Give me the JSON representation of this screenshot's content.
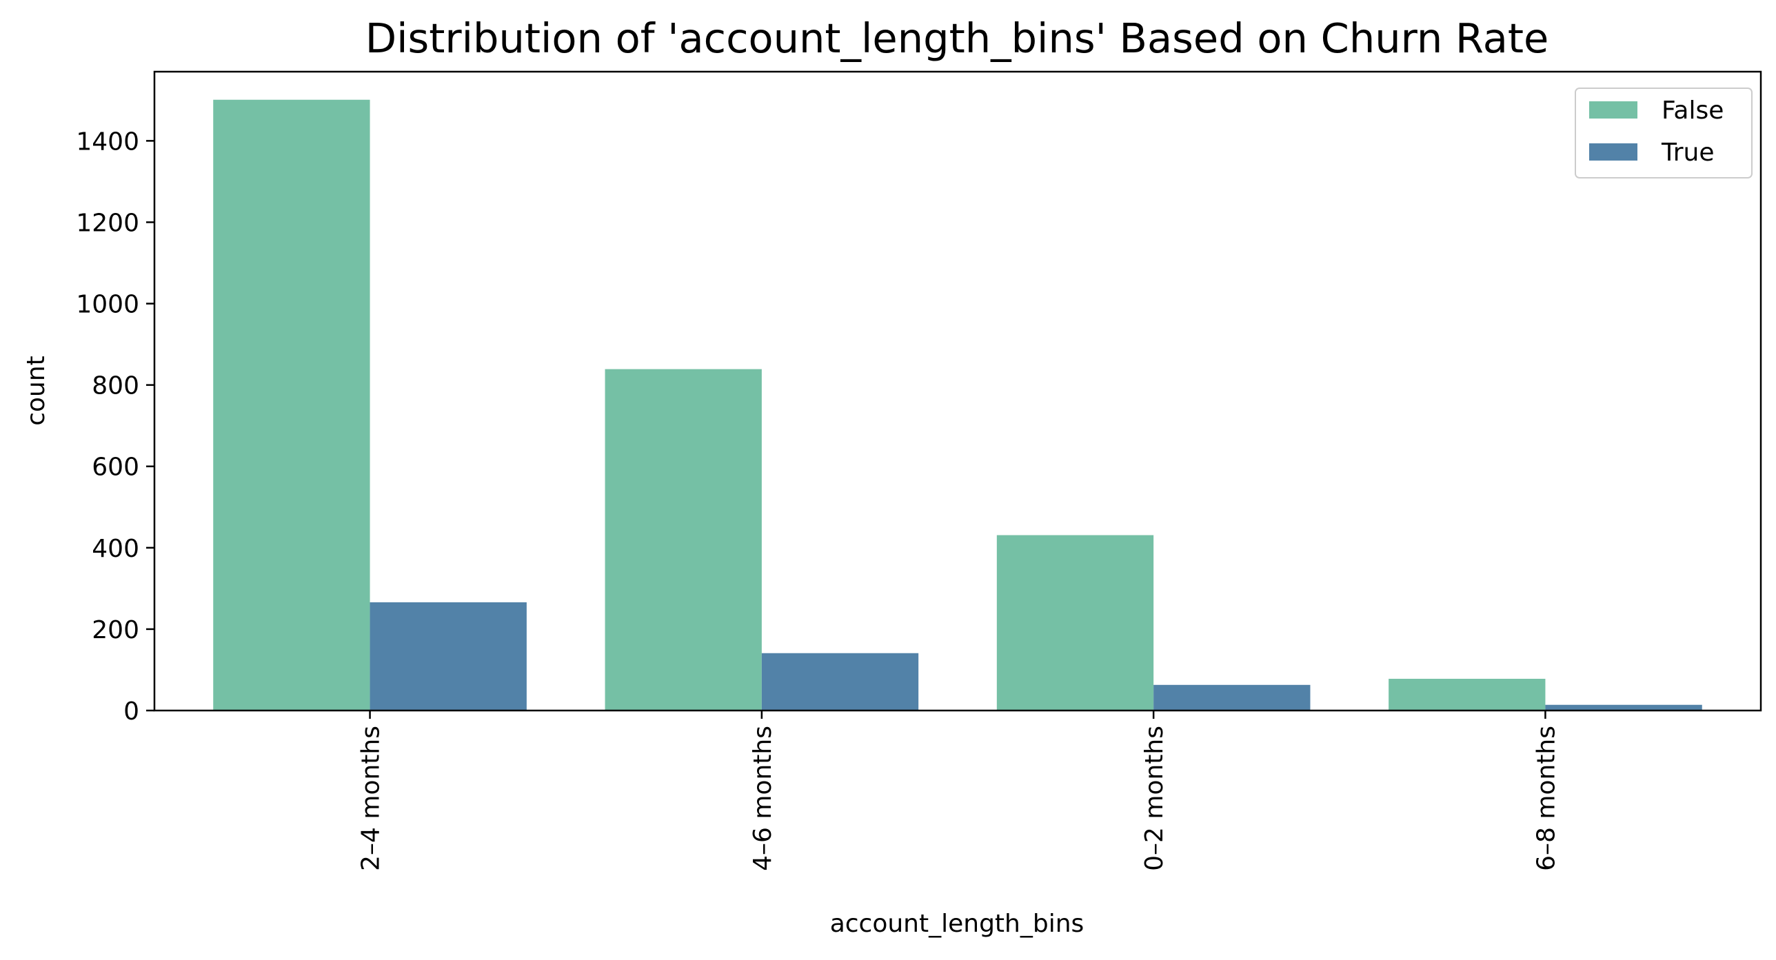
{
  "chart_data": {
    "type": "bar",
    "title": "Distribution of 'account_length_bins' Based on Churn Rate",
    "xlabel": "account_length_bins",
    "ylabel": "count",
    "categories": [
      "2–4 months",
      "4–6 months",
      "0–2 months",
      "6–8 months"
    ],
    "series": [
      {
        "name": "False",
        "color": "#75c0a5",
        "values": [
          1501,
          839,
          431,
          78
        ]
      },
      {
        "name": "True",
        "color": "#5282a8",
        "values": [
          266,
          141,
          63,
          14
        ]
      }
    ],
    "ylim": [
      0,
      1570
    ],
    "yticks": [
      0,
      200,
      400,
      600,
      800,
      1000,
      1200,
      1400
    ],
    "ytick_labels": [
      "0",
      "200",
      "400",
      "600",
      "800",
      "1000",
      "1200",
      "1400"
    ],
    "grid": false,
    "legend": {
      "placement": "top-right",
      "entries": [
        "False",
        "True"
      ]
    }
  }
}
